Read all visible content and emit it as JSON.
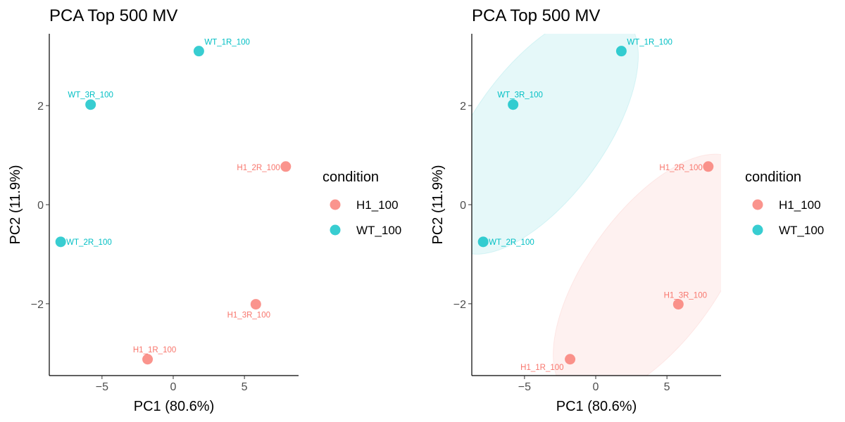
{
  "chart_data": [
    {
      "type": "scatter",
      "title": "PCA Top 500 MV",
      "xlabel": "PC1 (80.6%)",
      "ylabel": "PC2 (11.9%)",
      "xlim": [
        -8.7,
        8.8
      ],
      "ylim": [
        -3.45,
        3.45
      ],
      "xticks": [
        -5,
        0,
        5
      ],
      "yticks": [
        -2,
        0,
        2
      ],
      "grid": false,
      "hulls": false,
      "legend": {
        "title": "condition",
        "position": "right",
        "entries": [
          {
            "name": "H1_100",
            "color": "#F8766D"
          },
          {
            "name": "WT_100",
            "color": "#00BFC4"
          }
        ]
      },
      "points": [
        {
          "label": "WT_1R_100",
          "x": 1.8,
          "y": 3.1,
          "group": "WT_100"
        },
        {
          "label": "WT_3R_100",
          "x": -5.8,
          "y": 2.02,
          "group": "WT_100"
        },
        {
          "label": "WT_2R_100",
          "x": -7.9,
          "y": -0.75,
          "group": "WT_100"
        },
        {
          "label": "H1_2R_100",
          "x": 7.9,
          "y": 0.77,
          "group": "H1_100"
        },
        {
          "label": "H1_3R_100",
          "x": 5.8,
          "y": -2.01,
          "group": "H1_100"
        },
        {
          "label": "H1_1R_100",
          "x": -1.8,
          "y": -3.12,
          "group": "H1_100"
        }
      ]
    },
    {
      "type": "scatter",
      "title": "PCA Top 500 MV",
      "xlabel": "PC1 (80.6%)",
      "ylabel": "PC2 (11.9%)",
      "xlim": [
        -8.7,
        8.8
      ],
      "ylim": [
        -3.45,
        3.45
      ],
      "xticks": [
        -5,
        0,
        5
      ],
      "yticks": [
        -2,
        0,
        2
      ],
      "grid": false,
      "hulls": true,
      "legend": {
        "title": "condition",
        "position": "right",
        "entries": [
          {
            "name": "H1_100",
            "color": "#F8766D"
          },
          {
            "name": "WT_100",
            "color": "#00BFC4"
          }
        ]
      },
      "points": [
        {
          "label": "WT_1R_100",
          "x": 1.8,
          "y": 3.1,
          "group": "WT_100"
        },
        {
          "label": "WT_3R_100",
          "x": -5.8,
          "y": 2.02,
          "group": "WT_100"
        },
        {
          "label": "WT_2R_100",
          "x": -7.9,
          "y": -0.75,
          "group": "WT_100"
        },
        {
          "label": "H1_2R_100",
          "x": 7.9,
          "y": 0.77,
          "group": "H1_100"
        },
        {
          "label": "H1_3R_100",
          "x": 5.8,
          "y": -2.01,
          "group": "H1_100"
        },
        {
          "label": "H1_1R_100",
          "x": -1.8,
          "y": -3.12,
          "group": "H1_100"
        }
      ]
    }
  ]
}
